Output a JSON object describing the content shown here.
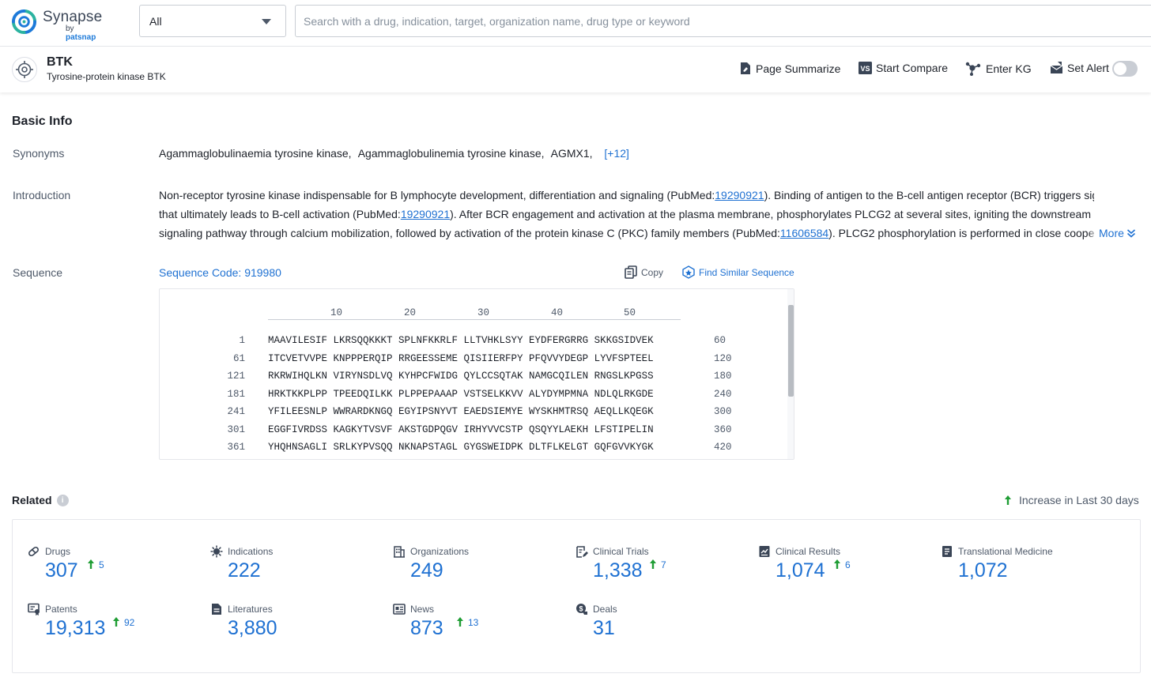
{
  "logo": {
    "name": "Synapse",
    "by": "by",
    "brand": "patsnap",
    "brand_color": "#1d7ad9"
  },
  "search": {
    "scope_value": "All",
    "placeholder": "Search with a drug, indication, target, organization name, drug type or keyword",
    "value": ""
  },
  "target": {
    "icon": "target-crosshair-icon",
    "name": "BTK",
    "full_name": "Tyrosine-protein kinase BTK",
    "actions": {
      "summarize": "Page Summarize",
      "compare": "Start Compare",
      "kg": "Enter KG",
      "alert": "Set Alert",
      "alert_on": false
    }
  },
  "basic_info": {
    "title": "Basic Info",
    "synonyms_label": "Synonyms",
    "synonyms": [
      "Agammaglobulinaemia tyrosine kinase,",
      "Agammaglobulinemia tyrosine kinase,",
      "AGMX1,"
    ],
    "synonyms_more": "[+12]",
    "intro_label": "Introduction",
    "intro_lines": [
      [
        {
          "t": "Non-receptor tyrosine kinase indispensable for B lymphocyte development, differentiation and signaling (PubMed:"
        },
        {
          "t": "19290921",
          "link": true
        },
        {
          "t": "). Binding of antigen to the B-cell antigen receptor (BCR) triggers signaling"
        }
      ],
      [
        {
          "t": "that ultimately leads to B-cell activation (PubMed:"
        },
        {
          "t": "19290921",
          "link": true
        },
        {
          "t": "). After BCR engagement and activation at the plasma membrane, phosphorylates PLCG2 at several sites, igniting the downstream"
        }
      ],
      [
        {
          "t": "signaling pathway through calcium mobilization, followed by activation of the protein kinase C (PKC) family members (PubMed:"
        },
        {
          "t": "11606584",
          "link": true
        },
        {
          "t": "). PLCG2 phosphorylation is performed in close coope"
        }
      ]
    ],
    "more_label": "More",
    "sequence_label": "Sequence",
    "sequence_code": "Sequence Code: 919980",
    "copy_label": "Copy",
    "similar_label": "Find Similar Sequence",
    "ruler": [
      "10",
      "20",
      "30",
      "40",
      "50"
    ],
    "sequence_rows": [
      {
        "start": "1",
        "seq": "MAAVILESIF LKRSQQKKKT SPLNFKKRLF LLTVHKLSYY EYDFERGRRG SKKGSIDVEK",
        "end": "60"
      },
      {
        "start": "61",
        "seq": "ITCVETVVPE KNPPPERQIP RRGEESSEME QISIIERFPY PFQVVYDEGP LYVFSPTEEL",
        "end": "120"
      },
      {
        "start": "121",
        "seq": "RKRWIHQLKN VIRYNSDLVQ KYHPCFWIDG QYLCCSQTAK NAMGCQILEN RNGSLKPGSS",
        "end": "180"
      },
      {
        "start": "181",
        "seq": "HRKTKKPLPP TPEEDQILKK PLPPEPAAAP VSTSELKKVV ALYDYMPMNA NDLQLRKGDE",
        "end": "240"
      },
      {
        "start": "241",
        "seq": "YFILEESNLP WWRARDKNGQ EGYIPSNYVT EAEDSIEMYE WYSKHMTRSQ AEQLLKQEGK",
        "end": "300"
      },
      {
        "start": "301",
        "seq": "EGGFIVRDSS KAGKYTVSVF AKSTGDPQGV IRHYVVCSTP QSQYYLAEKH LFSTIPELIN",
        "end": "360"
      },
      {
        "start": "361",
        "seq": "YHQHNSAGLI SRLKYPVSQQ NKNAPSTAGL GYGSWEIDPK DLTFLKELGT GQFGVVKYGK",
        "end": "420"
      }
    ]
  },
  "related": {
    "title": "Related",
    "legend": "Increase in Last 30 days",
    "increase_color": "#1f9d34",
    "stats": [
      {
        "label": "Drugs",
        "icon": "pill-icon",
        "value": "307",
        "inc": "5"
      },
      {
        "label": "Indications",
        "icon": "virus-icon",
        "value": "222",
        "inc": ""
      },
      {
        "label": "Organizations",
        "icon": "building-icon",
        "value": "249",
        "inc": ""
      },
      {
        "label": "Clinical Trials",
        "icon": "clipboard-edit-icon",
        "value": "1,338",
        "inc": "7"
      },
      {
        "label": "Clinical Results",
        "icon": "report-icon",
        "value": "1,074",
        "inc": "6"
      },
      {
        "label": "Translational Medicine",
        "icon": "notebook-icon",
        "value": "1,072",
        "inc": ""
      },
      {
        "label": "Patents",
        "icon": "patent-icon",
        "value": "19,313",
        "inc": "92"
      },
      {
        "label": "Literatures",
        "icon": "document-icon",
        "value": "3,880",
        "inc": ""
      },
      {
        "label": "News",
        "icon": "newspaper-icon",
        "value": "873",
        "inc": "13"
      },
      {
        "label": "Deals",
        "icon": "deal-icon",
        "value": "31",
        "inc": ""
      }
    ]
  }
}
